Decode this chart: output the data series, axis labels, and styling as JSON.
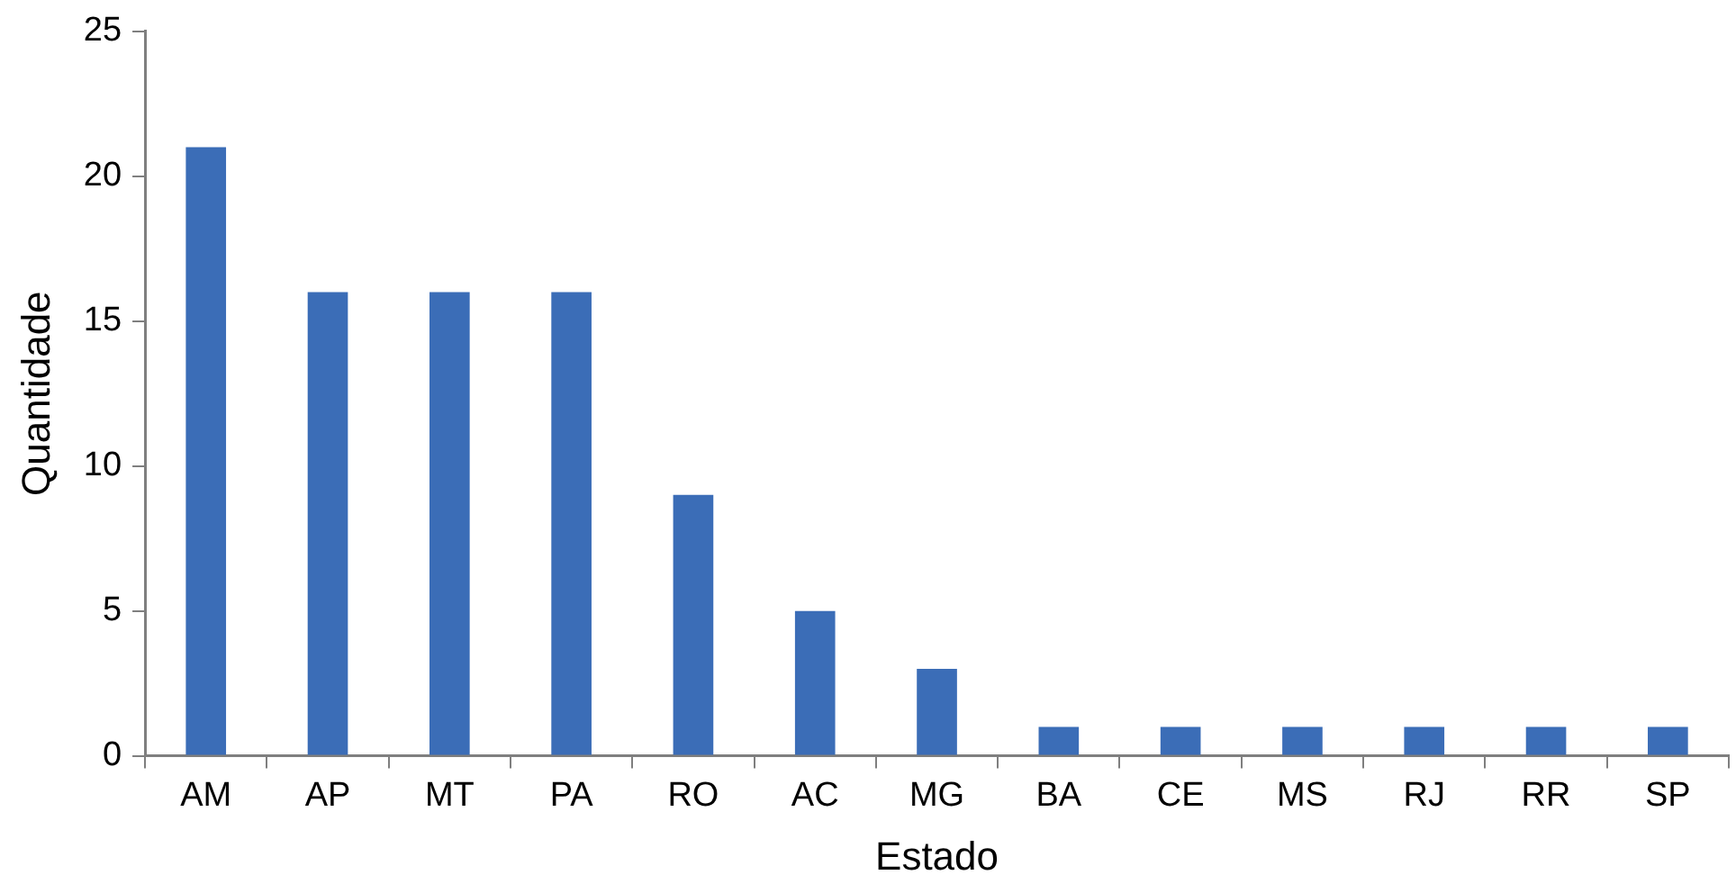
{
  "chart_data": {
    "type": "bar",
    "xlabel": "Estado",
    "ylabel": "Quantidade",
    "categories": [
      "AM",
      "AP",
      "MT",
      "PA",
      "RO",
      "AC",
      "MG",
      "BA",
      "CE",
      "MS",
      "RJ",
      "RR",
      "SP"
    ],
    "values": [
      21,
      16,
      16,
      16,
      9,
      5,
      3,
      1,
      1,
      1,
      1,
      1,
      1
    ],
    "color": "#3b6db7",
    "ylim": [
      0,
      25
    ],
    "yticks": [
      0,
      5,
      10,
      15,
      20,
      25
    ],
    "grid": false,
    "legend": false
  }
}
